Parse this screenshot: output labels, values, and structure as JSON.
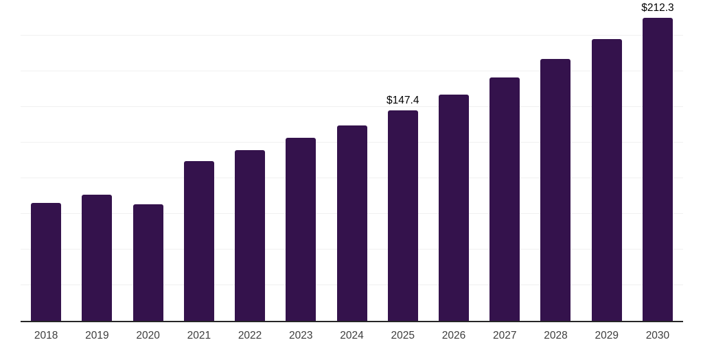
{
  "chart_data": {
    "type": "bar",
    "title": "",
    "xlabel": "",
    "ylabel": "",
    "categories": [
      "2018",
      "2019",
      "2020",
      "2021",
      "2022",
      "2023",
      "2024",
      "2025",
      "2026",
      "2027",
      "2028",
      "2029",
      "2030"
    ],
    "values": [
      82.8,
      88.7,
      81.8,
      112.0,
      119.7,
      128.3,
      137.1,
      147.4,
      158.5,
      170.6,
      183.5,
      197.4,
      212.3
    ],
    "data_labels": {
      "2025": "$147.4",
      "2030": "$212.3"
    },
    "ylim": [
      0,
      225
    ],
    "grid_step": 25,
    "grid": true,
    "legend": false,
    "colors": {
      "bar": "#34124C",
      "gridline": "#F0F0F0",
      "axis_line": "#262626",
      "tick_label": "#3D3D3D",
      "data_label": "#000000",
      "background": "#FFFFFF"
    }
  }
}
